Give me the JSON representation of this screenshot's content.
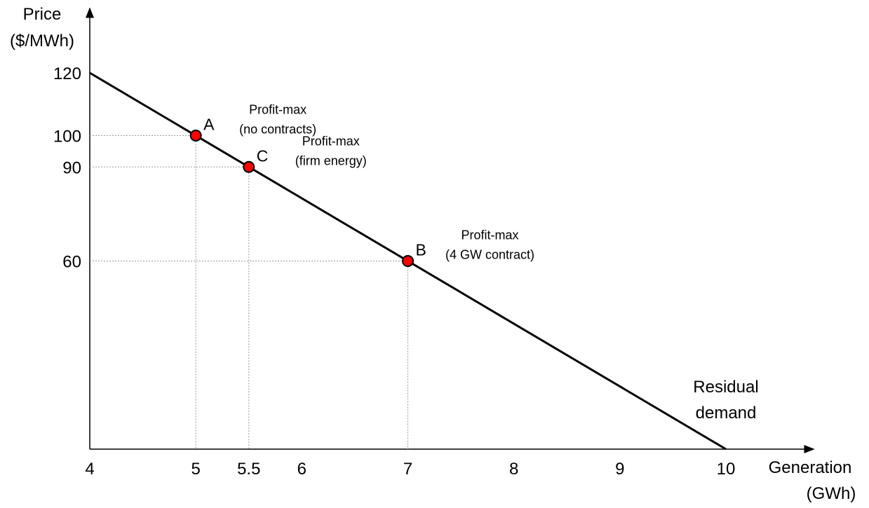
{
  "chart_data": {
    "type": "line",
    "title": "",
    "xlabel": [
      "Generation",
      "(GWh)"
    ],
    "ylabel": [
      "Price",
      "($/MWh)"
    ],
    "xlim": [
      4,
      10
    ],
    "ylim": [
      0,
      120
    ],
    "x_ticks": [
      "4",
      "5",
      "5.5",
      "6",
      "7",
      "8",
      "9",
      "10"
    ],
    "y_ticks": [
      "60",
      "90",
      "100",
      "120"
    ],
    "grid": false,
    "series": [
      {
        "x": [
          4,
          10
        ],
        "y": [
          120,
          0
        ]
      }
    ],
    "series_label": [
      "Residual",
      "demand"
    ],
    "points": [
      {
        "label": "A",
        "x": 5,
        "y": 100,
        "annotation": [
          "Profit-max",
          "(no contracts)"
        ]
      },
      {
        "label": "C",
        "x": 5.5,
        "y": 90,
        "annotation": [
          "Profit-max",
          "(firm energy)"
        ]
      },
      {
        "label": "B",
        "x": 7,
        "y": 60,
        "annotation": [
          "Profit-max",
          "(4 GW contract)"
        ]
      }
    ],
    "point_color": "#ff0000"
  }
}
